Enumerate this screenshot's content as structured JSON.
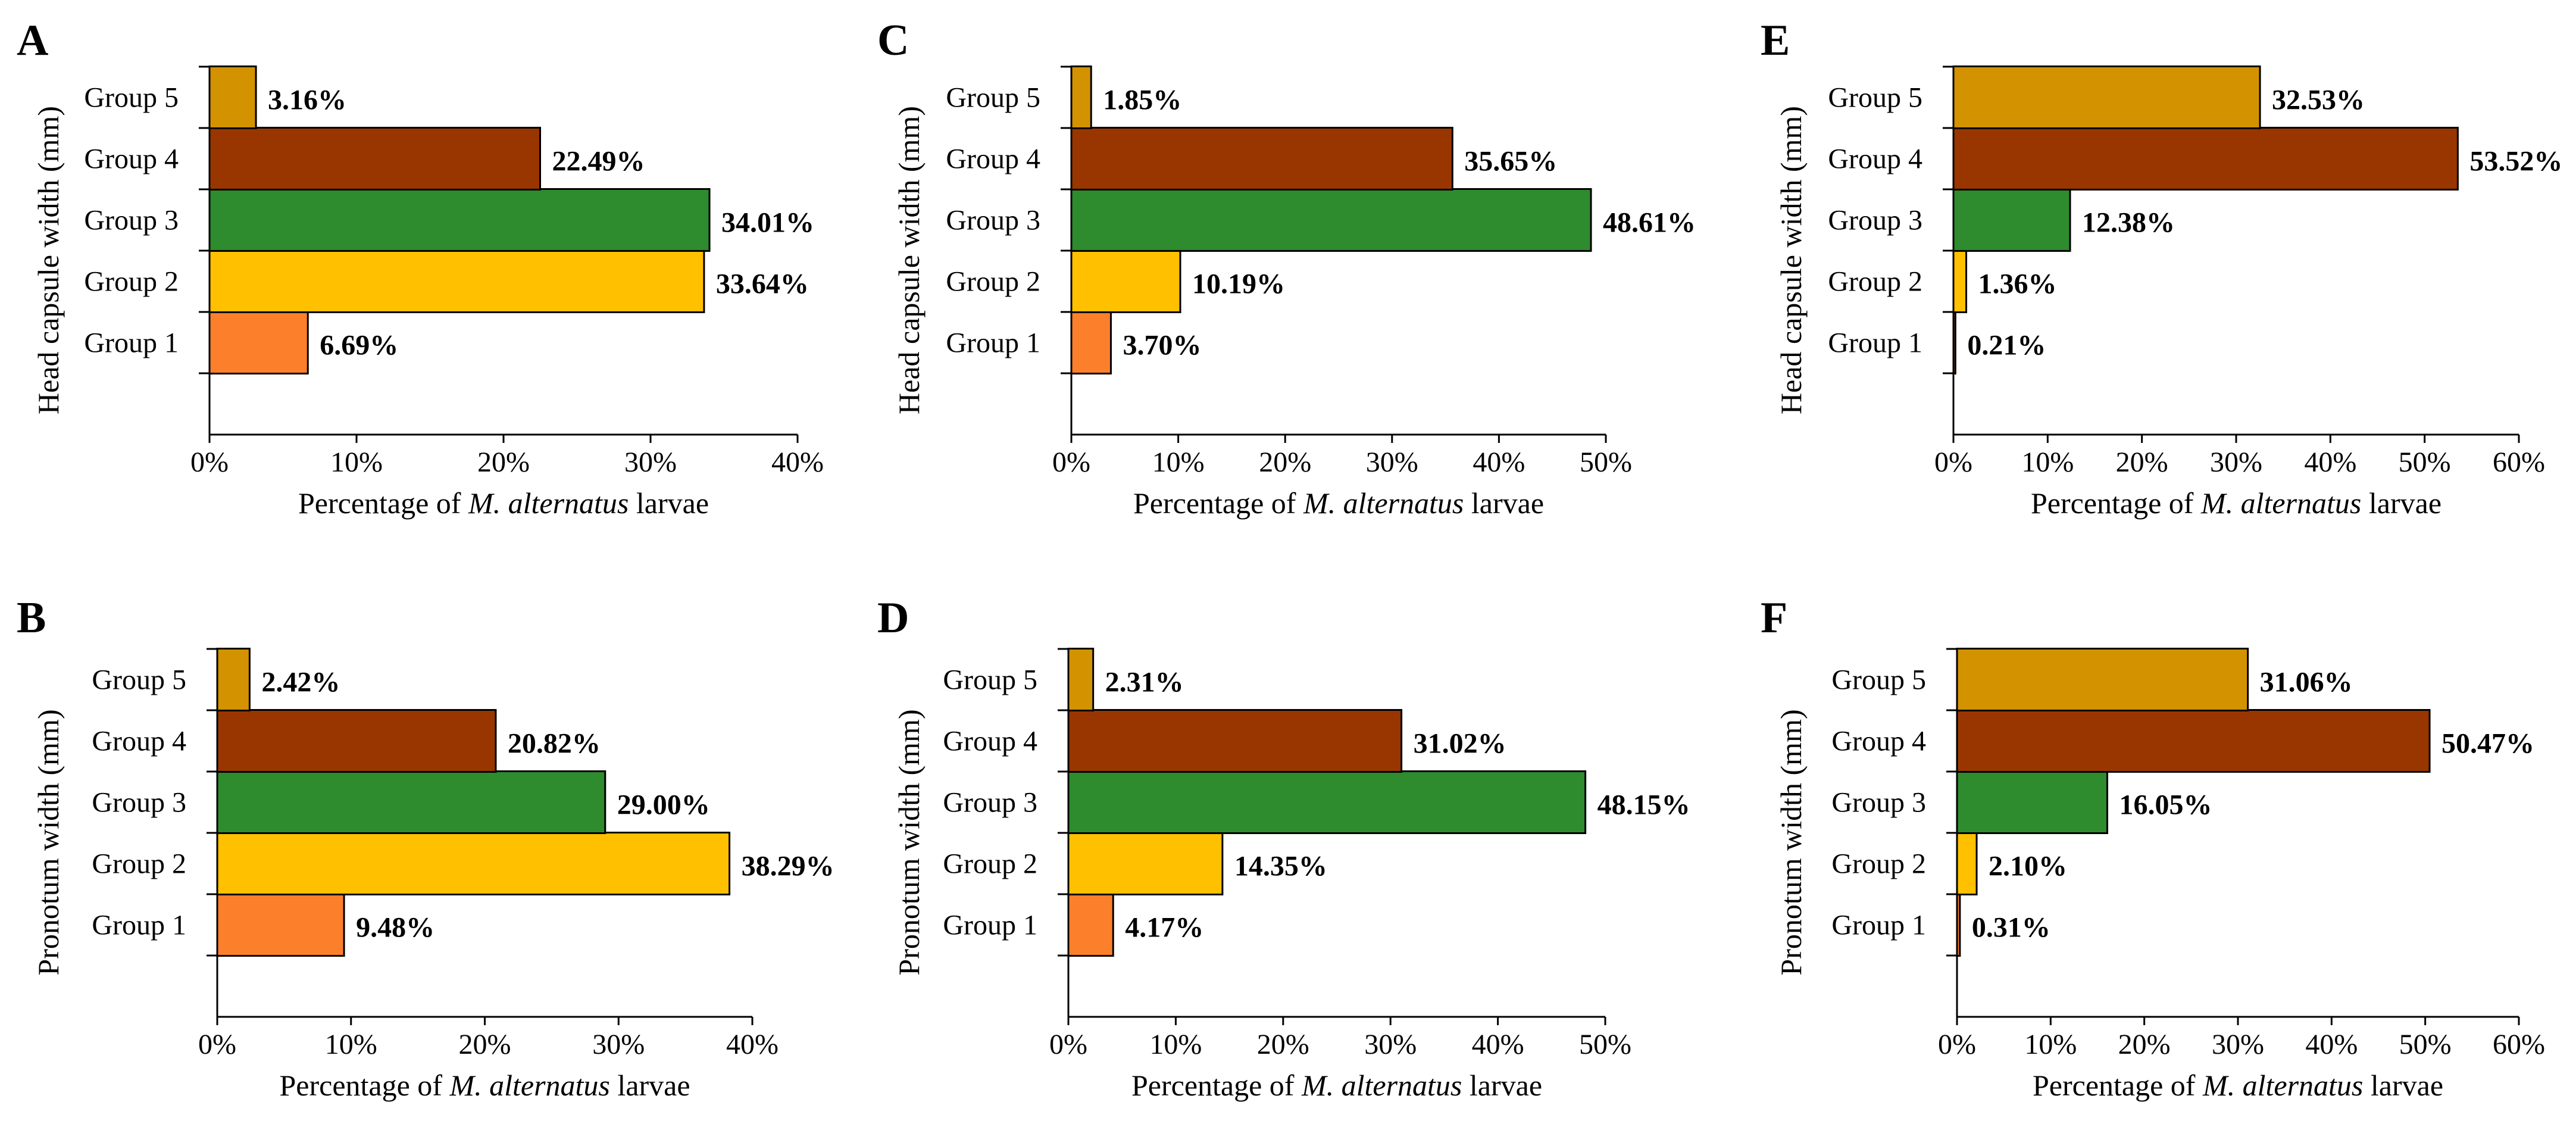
{
  "figure": {
    "x_axis_prefix": "Percentage of ",
    "x_axis_species": "M. alternatus",
    "x_axis_suffix": " larvae"
  },
  "chart_data": [
    {
      "type": "bar",
      "orientation": "horizontal",
      "panel": "A",
      "ylabel": "Head capsule width (mm)",
      "xlabel": "Percentage of M. alternatus larvae",
      "categories": [
        "Group 1",
        "Group 2",
        "Group 3",
        "Group 4",
        "Group 5"
      ],
      "values": [
        6.69,
        33.64,
        34.01,
        22.49,
        3.16
      ],
      "value_labels": [
        "6.69%",
        "33.64%",
        "34.01%",
        "22.49%",
        "3.16%"
      ],
      "colors": [
        "#fc7f2c",
        "#ffc000",
        "#2e8b2e",
        "#993600",
        "#d39200"
      ],
      "xlim": [
        0,
        40
      ],
      "xticks": [
        "0%",
        "10%",
        "20%",
        "30%",
        "40%"
      ]
    },
    {
      "type": "bar",
      "orientation": "horizontal",
      "panel": "B",
      "ylabel": "Pronotum width (mm)",
      "xlabel": "Percentage of M. alternatus larvae",
      "categories": [
        "Group 1",
        "Group 2",
        "Group 3",
        "Group 4",
        "Group 5"
      ],
      "values": [
        9.48,
        38.29,
        29.0,
        20.82,
        2.42
      ],
      "value_labels": [
        "9.48%",
        "38.29%",
        "29.00%",
        "20.82%",
        "2.42%"
      ],
      "colors": [
        "#fc7f2c",
        "#ffc000",
        "#2e8b2e",
        "#993600",
        "#d39200"
      ],
      "xlim": [
        0,
        40
      ],
      "xticks": [
        "0%",
        "10%",
        "20%",
        "30%",
        "40%"
      ]
    },
    {
      "type": "bar",
      "orientation": "horizontal",
      "panel": "C",
      "ylabel": "Head capsule width (mm)",
      "xlabel": "Percentage of M. alternatus larvae",
      "categories": [
        "Group 1",
        "Group 2",
        "Group 3",
        "Group 4",
        "Group 5"
      ],
      "values": [
        3.7,
        10.19,
        48.61,
        35.65,
        1.85
      ],
      "value_labels": [
        "3.70%",
        "10.19%",
        "48.61%",
        "35.65%",
        "1.85%"
      ],
      "colors": [
        "#fc7f2c",
        "#ffc000",
        "#2e8b2e",
        "#993600",
        "#d39200"
      ],
      "xlim": [
        0,
        50
      ],
      "xticks": [
        "0%",
        "10%",
        "20%",
        "30%",
        "40%",
        "50%"
      ]
    },
    {
      "type": "bar",
      "orientation": "horizontal",
      "panel": "D",
      "ylabel": "Pronotum width (mm)",
      "xlabel": "Percentage of M. alternatus larvae",
      "categories": [
        "Group 1",
        "Group 2",
        "Group 3",
        "Group 4",
        "Group 5"
      ],
      "values": [
        4.17,
        14.35,
        48.15,
        31.02,
        2.31
      ],
      "value_labels": [
        "4.17%",
        "14.35%",
        "48.15%",
        "31.02%",
        "2.31%"
      ],
      "colors": [
        "#fc7f2c",
        "#ffc000",
        "#2e8b2e",
        "#993600",
        "#d39200"
      ],
      "xlim": [
        0,
        50
      ],
      "xticks": [
        "0%",
        "10%",
        "20%",
        "30%",
        "40%",
        "50%"
      ]
    },
    {
      "type": "bar",
      "orientation": "horizontal",
      "panel": "E",
      "ylabel": "Head capsule width (mm)",
      "xlabel": "Percentage of M. alternatus larvae",
      "categories": [
        "Group 1",
        "Group 2",
        "Group 3",
        "Group 4",
        "Group 5"
      ],
      "values": [
        0.21,
        1.36,
        12.38,
        53.52,
        32.53
      ],
      "value_labels": [
        "0.21%",
        "1.36%",
        "12.38%",
        "53.52%",
        "32.53%"
      ],
      "colors": [
        "#fc7f2c",
        "#ffc000",
        "#2e8b2e",
        "#993600",
        "#d39200"
      ],
      "xlim": [
        0,
        60
      ],
      "xticks": [
        "0%",
        "10%",
        "20%",
        "30%",
        "40%",
        "50%",
        "60%"
      ]
    },
    {
      "type": "bar",
      "orientation": "horizontal",
      "panel": "F",
      "ylabel": "Pronotum width (mm)",
      "xlabel": "Percentage of M. alternatus larvae",
      "categories": [
        "Group 1",
        "Group 2",
        "Group 3",
        "Group 4",
        "Group 5"
      ],
      "values": [
        0.31,
        2.1,
        16.05,
        50.47,
        31.06
      ],
      "value_labels": [
        "0.31%",
        "2.10%",
        "16.05%",
        "50.47%",
        "31.06%"
      ],
      "colors": [
        "#fc7f2c",
        "#ffc000",
        "#2e8b2e",
        "#993600",
        "#d39200"
      ],
      "xlim": [
        0,
        60
      ],
      "xticks": [
        "0%",
        "10%",
        "20%",
        "30%",
        "40%",
        "50%",
        "60%"
      ]
    }
  ]
}
